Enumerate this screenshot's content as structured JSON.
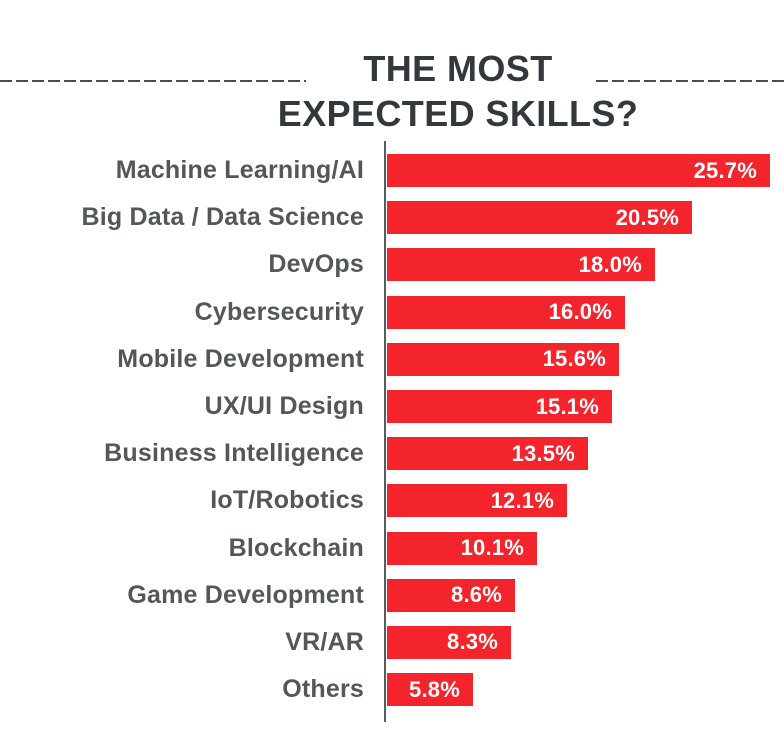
{
  "title": {
    "line1": "THE MOST",
    "line2": "EXPECTED SKILLS?"
  },
  "chart_data": {
    "type": "bar",
    "orientation": "horizontal",
    "title": "THE MOST EXPECTED SKILLS?",
    "xlabel": "",
    "ylabel": "",
    "xlim": [
      0,
      26.5
    ],
    "grid": false,
    "legend": false,
    "categories": [
      "Machine Learning/AI",
      "Big Data / Data Science",
      "DevOps",
      "Cybersecurity",
      "Mobile Development",
      "UX/UI Design",
      "Business Intelligence",
      "IoT/Robotics",
      "Blockchain",
      "Game Development",
      "VR/AR",
      "Others"
    ],
    "values": [
      25.7,
      20.5,
      18.0,
      16.0,
      15.6,
      15.1,
      13.5,
      12.1,
      10.1,
      8.6,
      8.3,
      5.8
    ],
    "value_labels": [
      "25.7%",
      "20.5%",
      "18.0%",
      "16.0%",
      "15.6%",
      "15.1%",
      "13.5%",
      "12.1%",
      "10.1%",
      "8.6%",
      "8.3%",
      "5.8%"
    ],
    "colors": {
      "bar": "#f3242b",
      "value_text": "#ffffff",
      "category_text": "#53575a",
      "title_text": "#33383d",
      "axis_line": "#595c5f",
      "dashed_rule": "#4b4e52",
      "background": "#ffffff"
    }
  }
}
